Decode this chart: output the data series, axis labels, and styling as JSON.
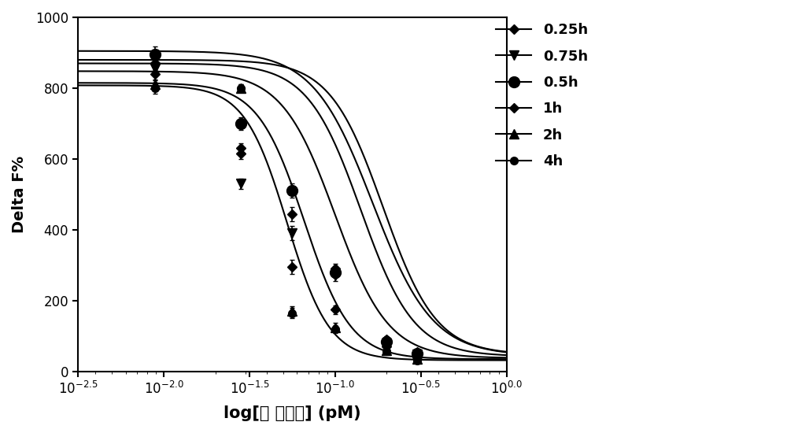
{
  "title": "",
  "xlabel": "log[芳 香化鉦] (pM)",
  "ylabel": "Delta F%",
  "ylim": [
    0,
    1000
  ],
  "yticks": [
    0,
    200,
    400,
    600,
    800,
    1000
  ],
  "series": [
    {
      "label": "0.25h",
      "marker": "D",
      "markersize": 5,
      "x_data_log": [
        -2.05,
        -1.55,
        -1.25,
        -1.0,
        -0.7,
        -0.52
      ],
      "y_data": [
        870,
        630,
        445,
        290,
        90,
        55
      ],
      "yerr": [
        20,
        15,
        20,
        15,
        10,
        8
      ],
      "top": 880,
      "bottom": 48,
      "ec50_log": -0.72,
      "hill": 2.8
    },
    {
      "label": "0.75h",
      "marker": "v",
      "markersize": 7,
      "x_data_log": [
        -2.05,
        -1.55,
        -1.25,
        -1.0,
        -0.7,
        -0.52
      ],
      "y_data": [
        855,
        530,
        390,
        270,
        80,
        48
      ],
      "yerr": [
        18,
        15,
        20,
        15,
        10,
        8
      ],
      "top": 870,
      "bottom": 43,
      "ec50_log": -0.85,
      "hill": 2.8
    },
    {
      "label": "0.5h",
      "marker": "o",
      "markersize": 9,
      "x_data_log": [
        -2.05,
        -1.55,
        -1.25,
        -1.0,
        -0.7,
        -0.52
      ],
      "y_data": [
        895,
        700,
        510,
        280,
        85,
        52
      ],
      "yerr": [
        22,
        18,
        20,
        15,
        10,
        8
      ],
      "top": 905,
      "bottom": 45,
      "ec50_log": -0.78,
      "hill": 2.5
    },
    {
      "label": "1h",
      "marker": "D",
      "markersize": 5,
      "x_data_log": [
        -2.05,
        -1.55,
        -1.25,
        -1.0,
        -0.7,
        -0.52
      ],
      "y_data": [
        840,
        615,
        295,
        175,
        70,
        40
      ],
      "yerr": [
        18,
        15,
        20,
        12,
        10,
        8
      ],
      "top": 848,
      "bottom": 38,
      "ec50_log": -1.0,
      "hill": 2.8
    },
    {
      "label": "2h",
      "marker": "^",
      "markersize": 7,
      "x_data_log": [
        -2.05,
        -1.55,
        -1.25,
        -1.0,
        -0.7,
        -0.52
      ],
      "y_data": [
        810,
        800,
        170,
        125,
        60,
        35
      ],
      "yerr": [
        15,
        12,
        15,
        12,
        8,
        6
      ],
      "top": 815,
      "bottom": 35,
      "ec50_log": -1.18,
      "hill": 3.2
    },
    {
      "label": "4h",
      "marker": "o",
      "markersize": 6,
      "x_data_log": [
        -2.05,
        -1.55,
        -1.25,
        -1.0,
        -0.7,
        -0.52
      ],
      "y_data": [
        800,
        800,
        165,
        120,
        58,
        32
      ],
      "yerr": [
        15,
        12,
        15,
        12,
        8,
        6
      ],
      "top": 808,
      "bottom": 32,
      "ec50_log": -1.28,
      "hill": 3.5
    }
  ],
  "xtick_log_positions": [
    -2.5,
    -2.0,
    -1.5,
    -1.0,
    -0.5,
    0.0
  ],
  "xtick_labels": [
    "$10^{-2.5}$",
    "$10^{-2.0}$",
    "$10^{-1.5}$",
    "$10^{-1.0}$",
    "$10^{-0.5}$",
    "$10^{0.0}$"
  ],
  "legend_markers": [
    "D",
    "v",
    "o",
    "D",
    "^",
    "o"
  ],
  "legend_markersizes": [
    6,
    8,
    10,
    6,
    8,
    7
  ],
  "background_color": "#ffffff",
  "axis_color": "#000000"
}
